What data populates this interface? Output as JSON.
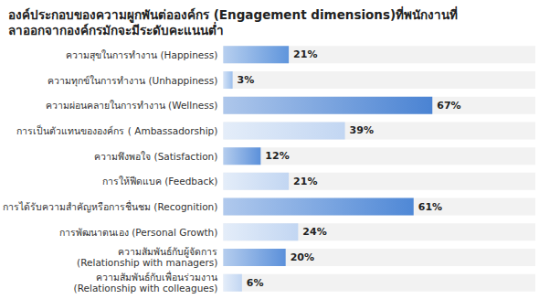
{
  "chart_data": {
    "type": "bar",
    "title": "องค์ประกอบของความผูกพันต่อองค์กร (Engagement dimensions)ที่พนักงานที่\nลาออกจากองค์กรมักจะมีระดับคะแนนต่ำ",
    "orientation": "horizontal",
    "categories": [
      "ความสุขในการทำงาน (Happiness)",
      "ความทุกข์ในการทำงาน (Unhappiness)",
      "ความผ่อนคลายในการทำงาน (Wellness)",
      "การเป็นตัวแทนขององค์กร ( Ambassadorship)",
      "ความพึงพอใจ (Satisfaction)",
      "การให้ฟีดแบค (Feedback)",
      "การได้รับความสำคัญหรือการชื่นชม (Recognition)",
      "การพัฒนาตนเอง (Personal Growth)",
      "ความสัมพันธ์กับผู้จัดการ\n(Relationship with managers)",
      "ความสัมพันธ์กับเพื่อนร่วมงาน\n(Relationship with colleagues)"
    ],
    "values": [
      21,
      3,
      67,
      39,
      12,
      21,
      61,
      24,
      20,
      6
    ],
    "value_labels": [
      "21%",
      "3%",
      "67%",
      "39%",
      "12%",
      "21%",
      "61%",
      "24%",
      "20%",
      "6%"
    ],
    "colors": [
      "#5f95dc",
      "#9dbfec",
      "#4a83d3",
      "#c2d6f2",
      "#5b90da",
      "#c2d6f2",
      "#4f88d6",
      "#c2d6f2",
      "#5b90da",
      "#c2d6f2"
    ],
    "xlim": [
      0,
      100
    ],
    "xticks": [
      0,
      100
    ],
    "data_labels": true,
    "tick_labels": "y",
    "grid": false
  }
}
